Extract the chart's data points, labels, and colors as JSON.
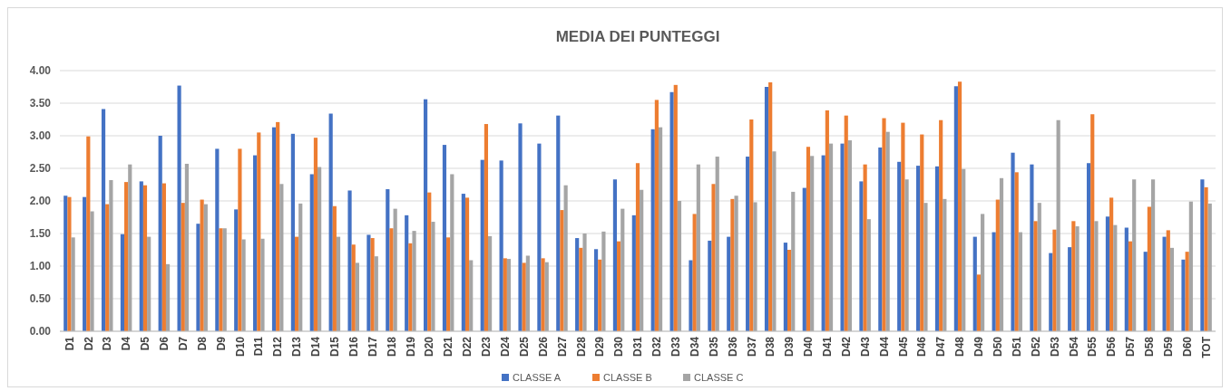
{
  "chart_data": {
    "type": "bar",
    "title": "MEDIA DEI PUNTEGGI",
    "categories": [
      "D1",
      "D2",
      "D3",
      "D4",
      "D5",
      "D6",
      "D7",
      "D8",
      "D9",
      "D10",
      "D11",
      "D12",
      "D13",
      "D14",
      "D15",
      "D16",
      "D17",
      "D18",
      "D19",
      "D20",
      "D21",
      "D22",
      "D23",
      "D24",
      "D25",
      "D26",
      "D27",
      "D28",
      "D29",
      "D30",
      "D31",
      "D32",
      "D33",
      "D34",
      "D35",
      "D36",
      "D37",
      "D38",
      "D39",
      "D40",
      "D41",
      "D42",
      "D43",
      "D44",
      "D45",
      "D46",
      "D47",
      "D48",
      "D49",
      "D50",
      "D51",
      "D52",
      "D53",
      "D54",
      "D55",
      "D56",
      "D57",
      "D58",
      "D59",
      "D60",
      "TOT"
    ],
    "series": [
      {
        "name": "CLASSE A",
        "color": "#4472c4",
        "values": [
          2.08,
          2.06,
          3.41,
          1.49,
          2.3,
          3.0,
          3.77,
          1.65,
          2.8,
          1.87,
          2.7,
          3.13,
          3.03,
          2.41,
          3.34,
          2.16,
          1.48,
          2.18,
          1.78,
          3.56,
          2.86,
          2.11,
          2.63,
          2.62,
          3.19,
          2.88,
          3.31,
          1.43,
          1.26,
          2.33,
          1.78,
          3.1,
          3.67,
          1.09,
          1.39,
          1.45,
          2.68,
          3.75,
          1.36,
          2.2,
          2.7,
          2.88,
          2.3,
          2.82,
          2.6,
          2.54,
          2.53,
          3.76,
          1.45,
          1.52,
          2.74,
          2.56,
          1.2,
          1.29,
          2.58,
          1.76,
          1.59,
          1.22,
          1.45,
          1.1,
          2.33
        ]
      },
      {
        "name": "CLASSE B",
        "color": "#ed7d31",
        "values": [
          2.06,
          2.99,
          1.95,
          2.29,
          2.24,
          2.27,
          1.97,
          2.02,
          1.58,
          2.8,
          3.05,
          3.21,
          1.45,
          2.97,
          1.92,
          1.33,
          1.43,
          1.58,
          1.35,
          2.13,
          1.44,
          2.05,
          3.18,
          1.12,
          1.05,
          1.12,
          1.86,
          1.28,
          1.1,
          1.38,
          2.58,
          3.55,
          3.78,
          1.8,
          2.26,
          2.03,
          3.25,
          3.82,
          1.25,
          2.83,
          3.39,
          3.31,
          2.56,
          3.27,
          3.2,
          3.02,
          3.24,
          3.83,
          0.87,
          2.02,
          2.44,
          1.69,
          1.56,
          1.69,
          3.33,
          2.05,
          1.38,
          1.91,
          1.55,
          1.22,
          2.21
        ]
      },
      {
        "name": "CLASSE C",
        "color": "#a5a5a5",
        "values": [
          1.44,
          1.84,
          2.32,
          2.56,
          1.45,
          1.03,
          2.57,
          1.95,
          1.58,
          1.41,
          1.42,
          2.26,
          1.96,
          2.52,
          1.45,
          1.05,
          1.15,
          1.88,
          1.54,
          1.68,
          2.41,
          1.09,
          1.46,
          1.11,
          1.16,
          1.06,
          2.24,
          1.5,
          1.53,
          1.88,
          2.17,
          3.13,
          2.0,
          2.56,
          2.68,
          2.08,
          1.98,
          2.76,
          2.14,
          2.69,
          2.88,
          2.93,
          1.72,
          3.06,
          2.33,
          1.97,
          2.03,
          2.49,
          1.8,
          2.35,
          1.52,
          1.97,
          3.24,
          1.61,
          1.69,
          1.63,
          2.33,
          2.33,
          1.28,
          1.99,
          1.96
        ]
      }
    ],
    "ylim": [
      0,
      4
    ],
    "yticks": [
      {
        "value": 0,
        "label": "0.00"
      },
      {
        "value": 0.5,
        "label": "0.50"
      },
      {
        "value": 1,
        "label": "1.00"
      },
      {
        "value": 1.5,
        "label": "1.50"
      },
      {
        "value": 2,
        "label": "2.00"
      },
      {
        "value": 2.5,
        "label": "2.50"
      },
      {
        "value": 3,
        "label": "3.00"
      },
      {
        "value": 3.5,
        "label": "3.50"
      },
      {
        "value": 4,
        "label": "4.00"
      }
    ],
    "grid": "y",
    "legend": "bottom"
  }
}
